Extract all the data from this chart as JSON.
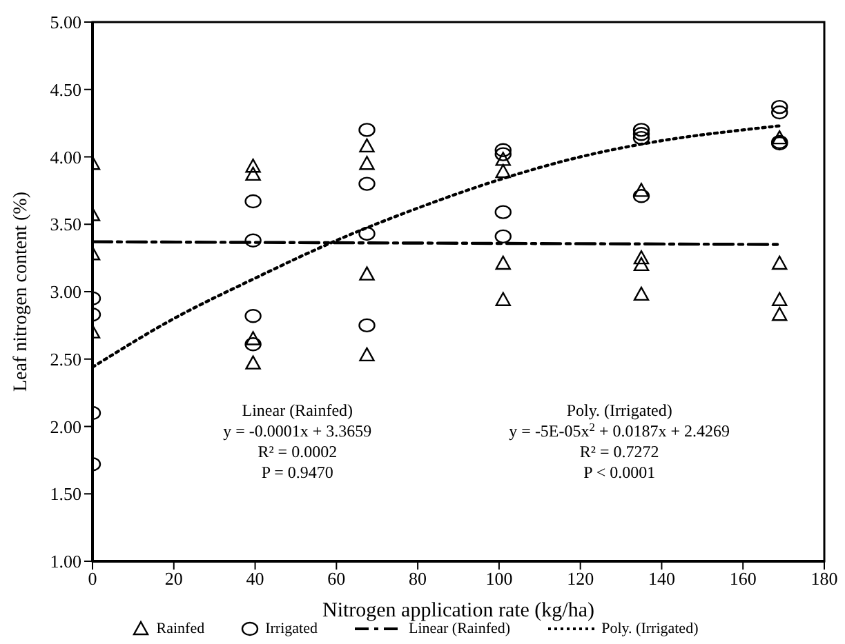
{
  "chart_data": {
    "type": "scatter",
    "xlabel": "Nitrogen application rate (kg/ha)",
    "ylabel": "Leaf nitrogen content (%)",
    "xlim": [
      0,
      180
    ],
    "xticks": [
      0,
      20,
      40,
      60,
      80,
      100,
      120,
      140,
      160,
      180
    ],
    "ylim": [
      1,
      5
    ],
    "yticks": [
      {
        "value": 1,
        "label": "1.00"
      },
      {
        "value": 1.5,
        "label": "1.50"
      },
      {
        "value": 2,
        "label": "2.00"
      },
      {
        "value": 2.5,
        "label": "2.50"
      },
      {
        "value": 3,
        "label": "3.00"
      },
      {
        "value": 3.5,
        "label": "3.50"
      },
      {
        "value": 4,
        "label": "4.00"
      },
      {
        "value": 4.5,
        "label": "4.50"
      },
      {
        "value": 5,
        "label": "5.00"
      }
    ],
    "grid": false,
    "legend": "bottom",
    "series": [
      {
        "name": "Rainfed",
        "marker": "triangle",
        "color": "#000000",
        "x": [
          0,
          0,
          0,
          0,
          39.5,
          39.5,
          39.5,
          39.5,
          67.5,
          67.5,
          67.5,
          67.5,
          101,
          101,
          101,
          101,
          135,
          135,
          135,
          135,
          169,
          169,
          169,
          169
        ],
        "values": [
          3.95,
          3.57,
          3.28,
          2.7,
          3.93,
          3.87,
          2.65,
          2.47,
          4.08,
          3.95,
          3.13,
          2.53,
          3.98,
          3.89,
          3.21,
          2.94,
          3.75,
          3.25,
          3.2,
          2.98,
          4.14,
          3.21,
          2.94,
          2.83
        ]
      },
      {
        "name": "Irrigated",
        "marker": "circle",
        "color": "#000000",
        "x": [
          0,
          0,
          0,
          0,
          39.5,
          39.5,
          39.5,
          39.5,
          67.5,
          67.5,
          67.5,
          67.5,
          101,
          101,
          101,
          101,
          135,
          135,
          135,
          135,
          169,
          169,
          169,
          169
        ],
        "values": [
          2.95,
          2.83,
          2.1,
          1.72,
          3.67,
          3.38,
          2.82,
          2.61,
          4.2,
          3.8,
          3.43,
          2.75,
          4.05,
          4.02,
          3.59,
          3.41,
          4.2,
          4.17,
          4.14,
          3.71,
          4.37,
          4.33,
          4.11,
          4.1
        ]
      },
      {
        "name": "Linear (Rainfed)",
        "type": "line",
        "marker": "none",
        "line_style": "dashed",
        "color": "#000000",
        "x": [
          0,
          169
        ],
        "values": [
          3.37,
          3.35
        ]
      },
      {
        "name": "Poly. (Irrigated)",
        "type": "line",
        "marker": "none",
        "line_style": "dotted",
        "color": "#000000",
        "x": [
          0,
          20,
          40,
          60,
          80,
          100,
          120,
          140,
          160,
          169
        ],
        "values": [
          2.44,
          2.8,
          3.1,
          3.38,
          3.62,
          3.83,
          4.0,
          4.12,
          4.2,
          4.23
        ]
      }
    ],
    "annotations": [
      "Linear (Rainfed)",
      "y = -0.0001x + 3.3659",
      "R² = 0.0002",
      "P = 0.9470",
      "Poly. (Irrigated)",
      "y = -5E-05x$^{2}$ + 0.0187x + 2.4269",
      "R² = 0.7272",
      "P < 0.0001"
    ]
  }
}
